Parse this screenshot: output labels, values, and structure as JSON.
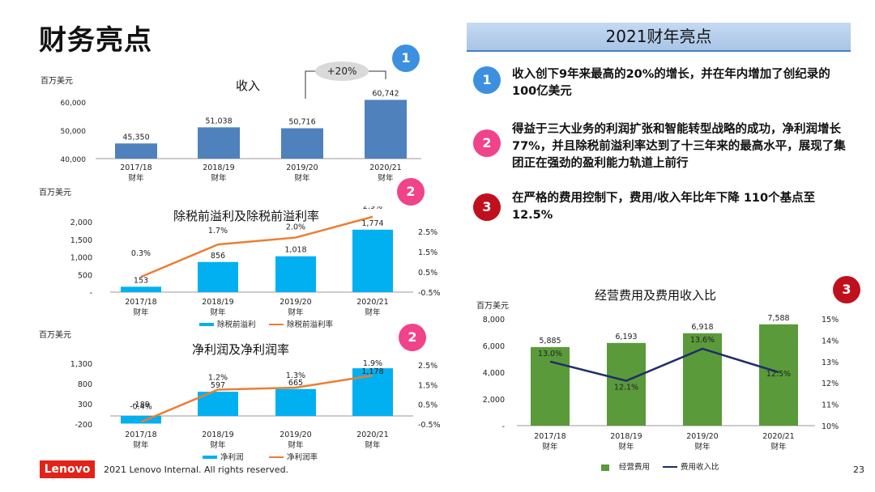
{
  "page": {
    "title": "财务亮点",
    "page_number": "23"
  },
  "footer": {
    "logo": "Lenovo",
    "copyright": "2021 Lenovo Internal. All rights reserved."
  },
  "highlights": {
    "header": "2021财年亮点",
    "items": [
      {
        "num": "1",
        "text": "收入创下9年来最高的20%的增长，并在年内增加了创纪录的100亿美元"
      },
      {
        "num": "2",
        "text": "得益于三大业务的利润扩张和智能转型战略的成功，净利润增长77%，并且除税前溢利率达到了十三年来的最高水平，展现了集团正在强劲的盈利能力轨道上前行"
      },
      {
        "num": "3",
        "text": "在严格的费用控制下，费用/收入年比年下降 110个基点至12.5%"
      }
    ]
  },
  "badges": {
    "revenue": "1",
    "pbt": "2",
    "np": "2",
    "opex": "3"
  },
  "chart_data": [
    {
      "id": "revenue",
      "type": "bar",
      "title": "收入",
      "unit": "百万美元",
      "categories": [
        "2017/18",
        "2018/19",
        "2019/20",
        "2020/21"
      ],
      "category_sub": "财年",
      "values": [
        45350,
        51038,
        50716,
        60742
      ],
      "value_labels": [
        "45,350",
        "51,038",
        "50,716",
        "60,742"
      ],
      "y_ticks": [
        "40,000",
        "50,000",
        "60,000"
      ],
      "ylim": [
        40000,
        60000
      ],
      "annotation": "+20%",
      "color": "#4f81bd"
    },
    {
      "id": "pbt",
      "type": "bar+line",
      "title": "除税前溢利及除税前溢利率",
      "unit": "百万美元",
      "categories": [
        "2017/18",
        "2018/19",
        "2019/20",
        "2020/21"
      ],
      "category_sub": "财年",
      "series": [
        {
          "name": "除税前溢利",
          "kind": "bar",
          "values": [
            153,
            856,
            1018,
            1774
          ],
          "labels": [
            "153",
            "856",
            "1,018",
            "1,774"
          ],
          "color": "#00b0f0"
        },
        {
          "name": "除税前溢利率",
          "kind": "line",
          "values": [
            0.3,
            1.7,
            2.0,
            2.9
          ],
          "labels": [
            "0.3%",
            "1.7%",
            "2.0%",
            "2.9%"
          ],
          "color": "#ed7d31"
        }
      ],
      "y_ticks": [
        "2,000",
        "1,500",
        "1,000",
        "500",
        "-"
      ],
      "ylim": [
        0,
        2000
      ],
      "y2_ticks": [
        "2.5%",
        "1.5%",
        "0.5%",
        "-0.5%"
      ],
      "y2lim": [
        -0.5,
        3.0
      ]
    },
    {
      "id": "np",
      "type": "bar+line",
      "title": "净利润及净利润率",
      "unit": "百万美元",
      "categories": [
        "2017/18",
        "2018/19",
        "2019/20",
        "2020/21"
      ],
      "category_sub": "财年",
      "series": [
        {
          "name": "净利润",
          "kind": "bar",
          "values": [
            -189,
            597,
            665,
            1178
          ],
          "labels": [
            "-189",
            "597",
            "665",
            "1,178"
          ],
          "color": "#00b0f0"
        },
        {
          "name": "净利润率",
          "kind": "line",
          "values": [
            -0.4,
            1.2,
            1.3,
            1.9
          ],
          "labels": [
            "-0.4%",
            "1.2%",
            "1.3%",
            "1.9%"
          ],
          "color": "#ed7d31"
        }
      ],
      "y_ticks": [
        "1,300",
        "800",
        "300",
        "-200"
      ],
      "ylim": [
        -200,
        1300
      ],
      "y2_ticks": [
        "2.5%",
        "1.5%",
        "0.5%",
        "-0.5%"
      ],
      "y2lim": [
        -0.5,
        2.5
      ]
    },
    {
      "id": "opex",
      "type": "bar+line",
      "title": "经营费用及费用收入比",
      "unit": "百万美元",
      "categories": [
        "2017/18",
        "2018/19",
        "2019/20",
        "2020/21"
      ],
      "category_sub": "财年",
      "series": [
        {
          "name": "经营费用",
          "kind": "bar",
          "values": [
            5885,
            6193,
            6918,
            7588
          ],
          "labels": [
            "5,885",
            "6,193",
            "6,918",
            "7,588"
          ],
          "color": "#5a9a3a"
        },
        {
          "name": "费用收入比",
          "kind": "line",
          "values": [
            13.0,
            12.1,
            13.6,
            12.5
          ],
          "labels": [
            "13.0%",
            "12.1%",
            "13.6%",
            "12.5%"
          ],
          "color": "#1f2d6b"
        }
      ],
      "y_ticks": [
        "8,000",
        "6,000",
        "4,000",
        "2,000",
        "-"
      ],
      "ylim": [
        0,
        8000
      ],
      "y2_ticks": [
        "15%",
        "14%",
        "13%",
        "12%",
        "11%",
        "10%"
      ],
      "y2lim": [
        10,
        15
      ]
    }
  ]
}
